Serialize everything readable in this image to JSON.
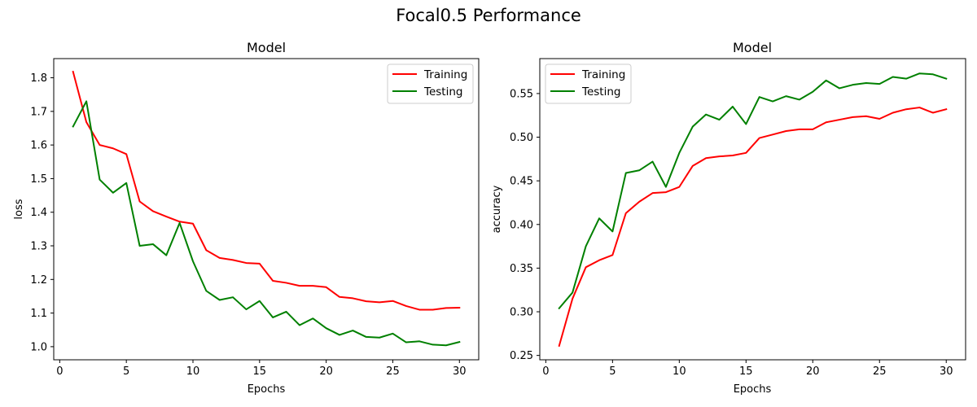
{
  "suptitle": "Focal0.5 Performance",
  "chart_data": [
    {
      "type": "line",
      "title": "Model",
      "xlabel": "Epochs",
      "ylabel": "loss",
      "xlim": [
        -0.45,
        31.45
      ],
      "ylim": [
        0.961,
        1.857
      ],
      "xticks": [
        0,
        5,
        10,
        15,
        20,
        25,
        30
      ],
      "yticks": [
        1.0,
        1.1,
        1.2,
        1.3,
        1.4,
        1.5,
        1.6,
        1.7,
        1.8
      ],
      "ytick_decimals": 1,
      "grid": false,
      "legend": "top-right",
      "x": [
        1,
        2,
        3,
        4,
        5,
        6,
        7,
        8,
        9,
        10,
        11,
        12,
        13,
        14,
        15,
        16,
        17,
        18,
        19,
        20,
        21,
        22,
        23,
        24,
        25,
        26,
        27,
        28,
        29,
        30
      ],
      "series": [
        {
          "name": "Training",
          "color": "#ff0000",
          "values": [
            1.818,
            1.668,
            1.6,
            1.59,
            1.573,
            1.432,
            1.403,
            1.387,
            1.372,
            1.366,
            1.287,
            1.264,
            1.258,
            1.249,
            1.247,
            1.196,
            1.19,
            1.181,
            1.181,
            1.177,
            1.148,
            1.144,
            1.135,
            1.132,
            1.136,
            1.121,
            1.11,
            1.11,
            1.115,
            1.116
          ]
        },
        {
          "name": "Testing",
          "color": "#008000",
          "values": [
            1.655,
            1.73,
            1.497,
            1.458,
            1.487,
            1.3,
            1.305,
            1.272,
            1.368,
            1.254,
            1.166,
            1.139,
            1.147,
            1.111,
            1.136,
            1.087,
            1.104,
            1.064,
            1.084,
            1.055,
            1.035,
            1.048,
            1.029,
            1.027,
            1.039,
            1.013,
            1.016,
            1.006,
            1.004,
            1.014
          ]
        }
      ]
    },
    {
      "type": "line",
      "title": "Model",
      "xlabel": "Epochs",
      "ylabel": "accuracy",
      "xlim": [
        -0.45,
        31.45
      ],
      "ylim": [
        0.245,
        0.59
      ],
      "xticks": [
        0,
        5,
        10,
        15,
        20,
        25,
        30
      ],
      "yticks": [
        0.25,
        0.3,
        0.35,
        0.4,
        0.45,
        0.5,
        0.55
      ],
      "ytick_decimals": 2,
      "grid": false,
      "legend": "top-left",
      "x": [
        1,
        2,
        3,
        4,
        5,
        6,
        7,
        8,
        9,
        10,
        11,
        12,
        13,
        14,
        15,
        16,
        17,
        18,
        19,
        20,
        21,
        22,
        23,
        24,
        25,
        26,
        27,
        28,
        29,
        30
      ],
      "series": [
        {
          "name": "Training",
          "color": "#ff0000",
          "values": [
            0.261,
            0.315,
            0.351,
            0.359,
            0.365,
            0.413,
            0.426,
            0.436,
            0.437,
            0.443,
            0.467,
            0.476,
            0.478,
            0.479,
            0.482,
            0.499,
            0.503,
            0.507,
            0.509,
            0.509,
            0.517,
            0.52,
            0.523,
            0.524,
            0.521,
            0.528,
            0.532,
            0.534,
            0.528,
            0.532
          ]
        },
        {
          "name": "Testing",
          "color": "#008000",
          "values": [
            0.304,
            0.322,
            0.375,
            0.407,
            0.392,
            0.459,
            0.462,
            0.472,
            0.443,
            0.482,
            0.512,
            0.526,
            0.52,
            0.535,
            0.515,
            0.546,
            0.541,
            0.547,
            0.543,
            0.552,
            0.565,
            0.556,
            0.56,
            0.562,
            0.561,
            0.569,
            0.567,
            0.573,
            0.572,
            0.567
          ]
        }
      ]
    }
  ]
}
